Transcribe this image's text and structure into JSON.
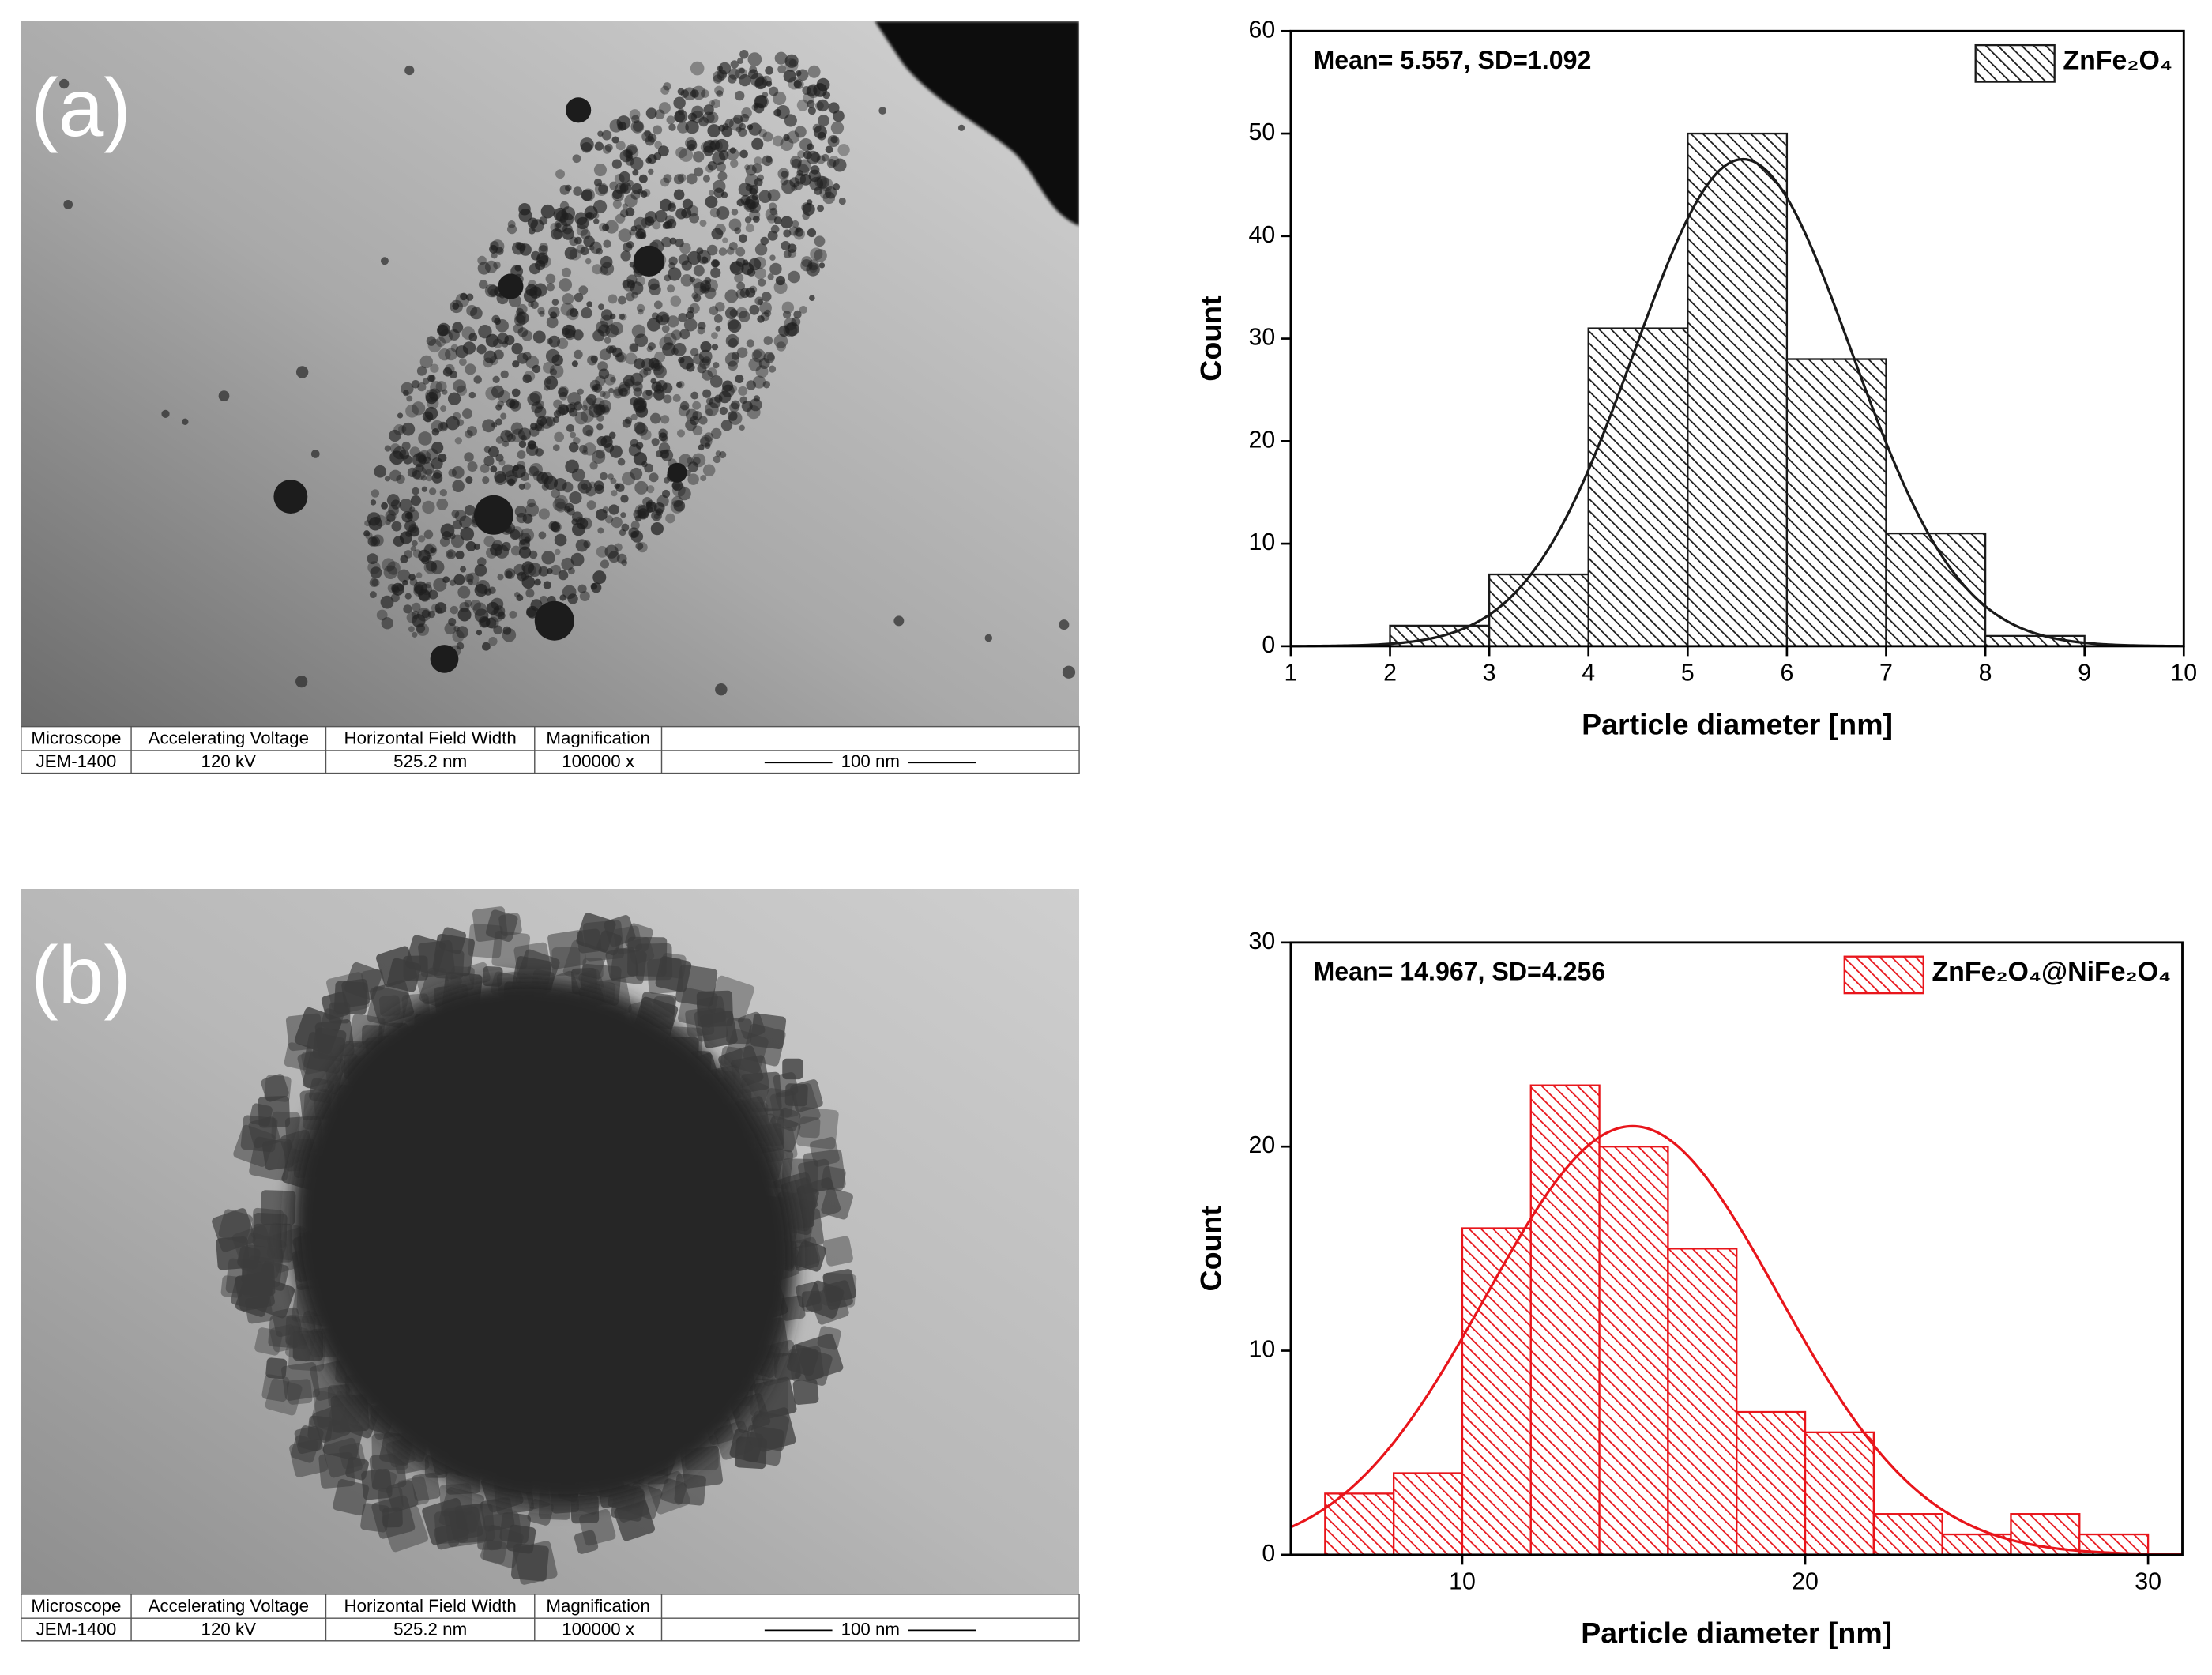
{
  "images": [
    {
      "label": "(a)",
      "table": {
        "headers": [
          "Microscope",
          "Accelerating Voltage",
          "Horizontal Field Width",
          "Magnification"
        ],
        "values": [
          "JEM-1400",
          "120 kV",
          "525.2 nm",
          "100000 x"
        ],
        "scale_bar": "100 nm"
      }
    },
    {
      "label": "(b)",
      "table": {
        "headers": [
          "Microscope",
          "Accelerating Voltage",
          "Horizontal Field Width",
          "Magnification"
        ],
        "values": [
          "JEM-1400",
          "120 kV",
          "525.2 nm",
          "100000 x"
        ],
        "scale_bar": "100 nm"
      }
    }
  ],
  "chart_data": [
    {
      "type": "histogram",
      "annotation": "Mean= 5.557, SD=1.092",
      "x_label": "Particle diameter [nm]",
      "y_label": "Count",
      "bins": [
        2,
        3,
        4,
        5,
        6,
        7,
        8,
        9
      ],
      "series": [
        {
          "name": "ZnFe₂O₄",
          "color": "#1a1a1a",
          "values": [
            2,
            7,
            31,
            50,
            28,
            11,
            1
          ]
        }
      ],
      "fit": {
        "mean": 5.557,
        "sd": 1.092,
        "amplitude": 47.5
      },
      "xlim": [
        1,
        10
      ],
      "xticks": [
        1,
        2,
        3,
        4,
        5,
        6,
        7,
        8,
        9,
        10
      ],
      "ylim": [
        0,
        60
      ],
      "yticks": [
        0,
        10,
        20,
        30,
        40,
        50,
        60
      ],
      "legend": "top-right"
    },
    {
      "type": "histogram",
      "annotation": "Mean= 14.967, SD=4.256",
      "x_label": "Particle diameter [nm]",
      "y_label": "Count",
      "bins": [
        6,
        8,
        10,
        12,
        14,
        16,
        18,
        20,
        22,
        24,
        26,
        28,
        30
      ],
      "series": [
        {
          "name": "ZnFe₂O₄@NiFe₂O₄",
          "color": "#e8151b",
          "values": [
            3,
            4,
            16,
            23,
            20,
            15,
            7,
            6,
            2,
            1,
            2,
            1
          ]
        }
      ],
      "fit": {
        "mean": 14.967,
        "sd": 4.256,
        "amplitude": 21
      },
      "xlim": [
        5,
        31
      ],
      "xticks": [
        10,
        20,
        30
      ],
      "ylim": [
        0,
        30
      ],
      "yticks": [
        0,
        10,
        20,
        30
      ],
      "legend": "top-right"
    }
  ]
}
